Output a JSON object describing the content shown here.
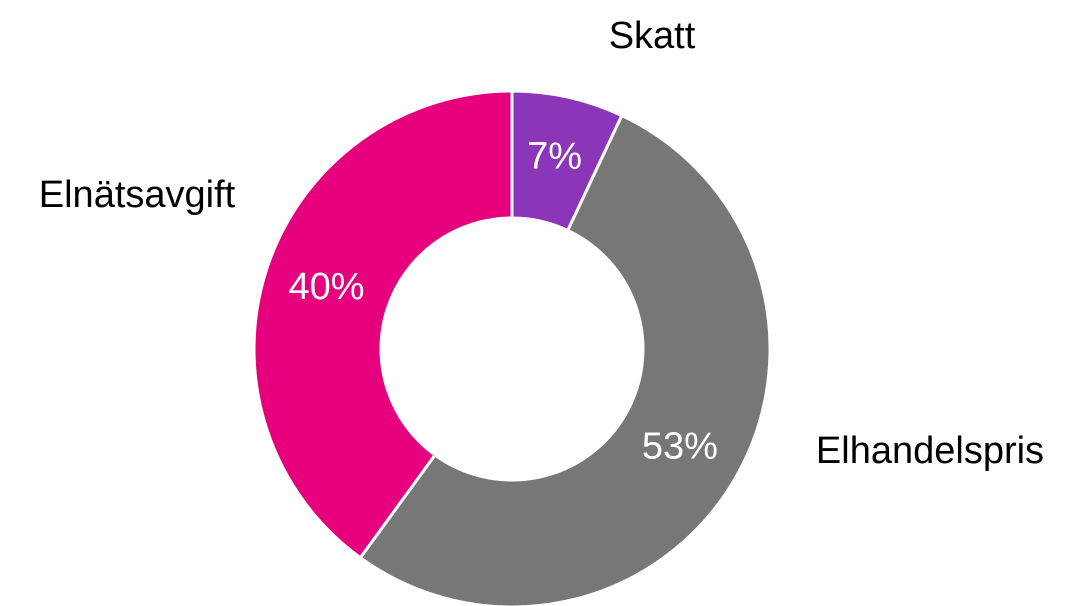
{
  "chart_data": {
    "type": "pie",
    "categories": [
      "Skatt",
      "Elhandelspris",
      "Elnätsavgift"
    ],
    "values": [
      7,
      53,
      40
    ],
    "value_labels": [
      "7%",
      "53%",
      "40%"
    ],
    "colors": [
      "#8b35b8",
      "#777777",
      "#e6007e"
    ]
  }
}
